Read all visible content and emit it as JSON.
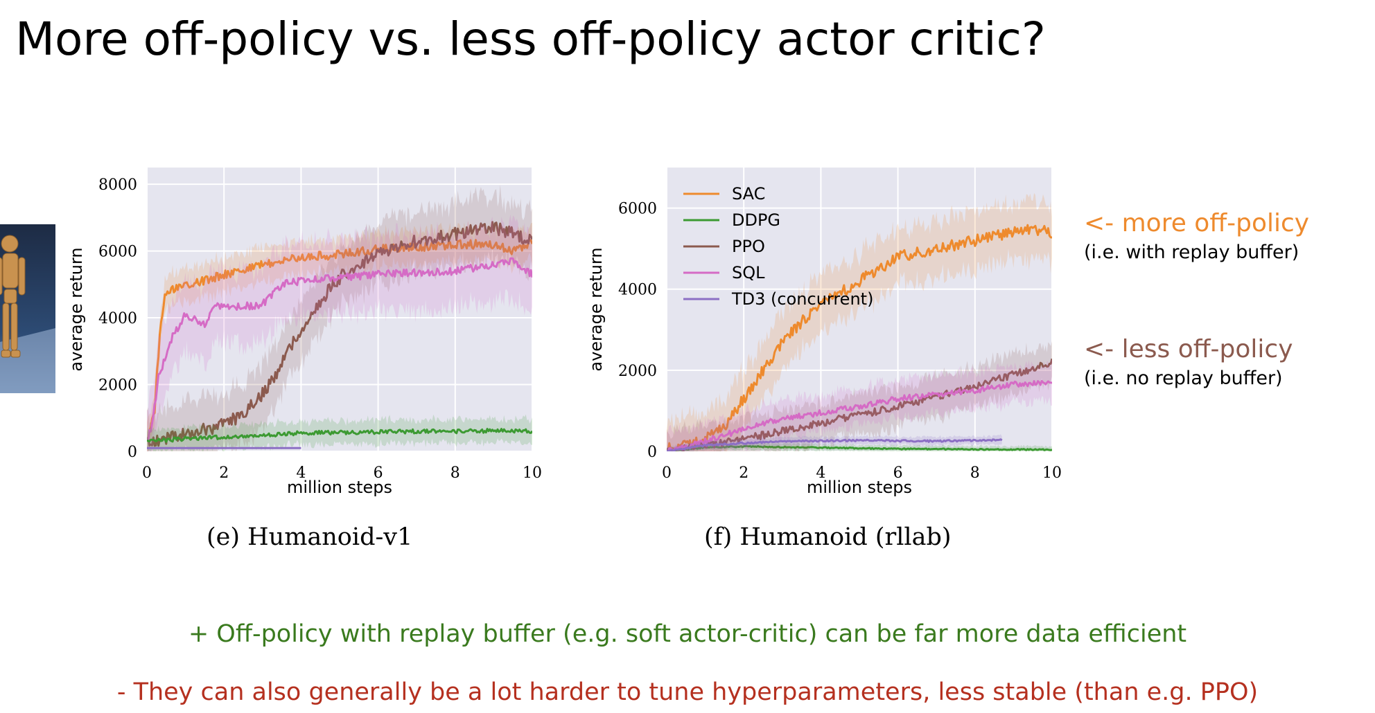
{
  "slide": {
    "title": "More off-policy vs. less off-policy actor critic?",
    "colors": {
      "green_text": "#3a7a1e",
      "red_text": "#b5301f",
      "more_off_policy": "#ee8a2d",
      "less_off_policy": "#8b5a4e"
    }
  },
  "robot_thumbnail": {
    "icon": "humanoid-robot-icon"
  },
  "annotations": {
    "more_off_policy": {
      "label": "<- more off-policy",
      "detail": "(i.e. with replay buffer)"
    },
    "less_off_policy": {
      "label": "<- less off-policy",
      "detail": "(i.e. no replay buffer)"
    }
  },
  "bottom": {
    "pro": "+ Off-policy with replay buffer (e.g. soft actor-critic) can be far more data efficient",
    "con": "- They can also generally be a lot harder to tune hyperparameters, less stable (than e.g. PPO)"
  },
  "chart_data": [
    {
      "type": "line",
      "title": "(e) Humanoid-v1",
      "xlabel": "million steps",
      "ylabel": "average return",
      "xlim": [
        0,
        10
      ],
      "ylim": [
        0,
        8500
      ],
      "xticks": [
        0,
        2,
        4,
        6,
        8,
        10
      ],
      "yticks": [
        0,
        2000,
        4000,
        6000,
        8000
      ],
      "grid": true,
      "legend": "none",
      "series": [
        {
          "color": "#ee8a2d",
          "noise": 130,
          "spread": 500,
          "x": [
            0,
            0.2,
            0.35,
            0.5,
            0.8,
            1.0,
            1.5,
            2,
            3,
            4,
            5,
            6,
            7,
            8,
            9,
            9.5,
            10
          ],
          "y": [
            300,
            1200,
            3800,
            4800,
            4900,
            5000,
            5100,
            5300,
            5600,
            5800,
            5900,
            6050,
            6100,
            6200,
            6200,
            6000,
            6300
          ]
        },
        {
          "color": "#8b5a4e",
          "noise": 200,
          "spread": 900,
          "x": [
            0,
            1,
            2,
            2.5,
            3,
            3.5,
            4,
            4.5,
            5,
            6,
            7,
            8,
            9,
            10
          ],
          "y": [
            300,
            500,
            800,
            1100,
            1700,
            2600,
            3700,
            4500,
            5200,
            5900,
            6300,
            6500,
            6700,
            6300
          ]
        },
        {
          "color": "#d56bc5",
          "noise": 110,
          "spread": 1100,
          "x": [
            0,
            0.15,
            0.3,
            0.6,
            1.0,
            1.5,
            1.8,
            2.2,
            3,
            3.5,
            4,
            5,
            6,
            7,
            8,
            9,
            9.5,
            10
          ],
          "y": [
            300,
            900,
            2200,
            3300,
            4100,
            3800,
            4400,
            4300,
            4400,
            5000,
            5100,
            5200,
            5300,
            5350,
            5400,
            5600,
            5700,
            5300
          ]
        },
        {
          "color": "#3c9a32",
          "noise": 60,
          "spread": 350,
          "x": [
            0,
            1,
            2,
            3,
            4,
            5,
            6,
            7,
            8,
            9,
            10
          ],
          "y": [
            300,
            380,
            420,
            480,
            550,
            560,
            580,
            600,
            590,
            620,
            600
          ]
        },
        {
          "color": "#8c6fc4",
          "noise": 0,
          "spread": 0,
          "x": [
            0,
            4
          ],
          "y": [
            100,
            100
          ]
        }
      ]
    },
    {
      "type": "line",
      "title": "(f) Humanoid (rllab)",
      "xlabel": "million steps",
      "ylabel": "average return",
      "xlim": [
        0,
        10
      ],
      "ylim": [
        0,
        7000
      ],
      "xticks": [
        0,
        2,
        4,
        6,
        8,
        10
      ],
      "yticks": [
        0,
        2000,
        4000,
        6000
      ],
      "grid": true,
      "legend": "top-left",
      "series": [
        {
          "name": "SAC",
          "color": "#ee8a2d",
          "noise": 140,
          "spread": 700,
          "x": [
            0,
            1,
            1.5,
            2,
            2.5,
            3,
            3.5,
            4,
            5,
            6,
            7,
            8,
            9,
            9.5,
            10
          ],
          "y": [
            50,
            300,
            600,
            1300,
            2000,
            2700,
            3200,
            3600,
            4200,
            4800,
            5000,
            5200,
            5400,
            5500,
            5400
          ]
        },
        {
          "name": "DDPG",
          "color": "#3c9a32",
          "noise": 15,
          "spread": 80,
          "x": [
            0,
            1,
            2,
            4,
            6,
            8,
            10
          ],
          "y": [
            0,
            100,
            120,
            90,
            60,
            50,
            40
          ]
        },
        {
          "name": "PPO",
          "color": "#8b5a4e",
          "noise": 90,
          "spread": 500,
          "x": [
            0,
            1,
            2,
            3,
            4,
            5,
            6,
            7,
            8,
            9,
            10
          ],
          "y": [
            0,
            150,
            300,
            500,
            700,
            900,
            1100,
            1350,
            1600,
            1900,
            2200
          ]
        },
        {
          "name": "SQL",
          "color": "#d56bc5",
          "noise": 70,
          "spread": 450,
          "x": [
            0,
            1,
            2,
            3,
            4,
            5,
            6,
            7,
            8,
            9,
            10
          ],
          "y": [
            0,
            250,
            550,
            800,
            950,
            1100,
            1300,
            1400,
            1500,
            1650,
            1700
          ]
        },
        {
          "name": "TD3 (concurrent)",
          "color": "#8c6fc4",
          "noise": 20,
          "spread": 100,
          "x": [
            0,
            1,
            2,
            3,
            4,
            5,
            6,
            7,
            8,
            8.7
          ],
          "y": [
            0,
            150,
            200,
            250,
            260,
            270,
            260,
            250,
            270,
            280
          ]
        }
      ]
    }
  ]
}
